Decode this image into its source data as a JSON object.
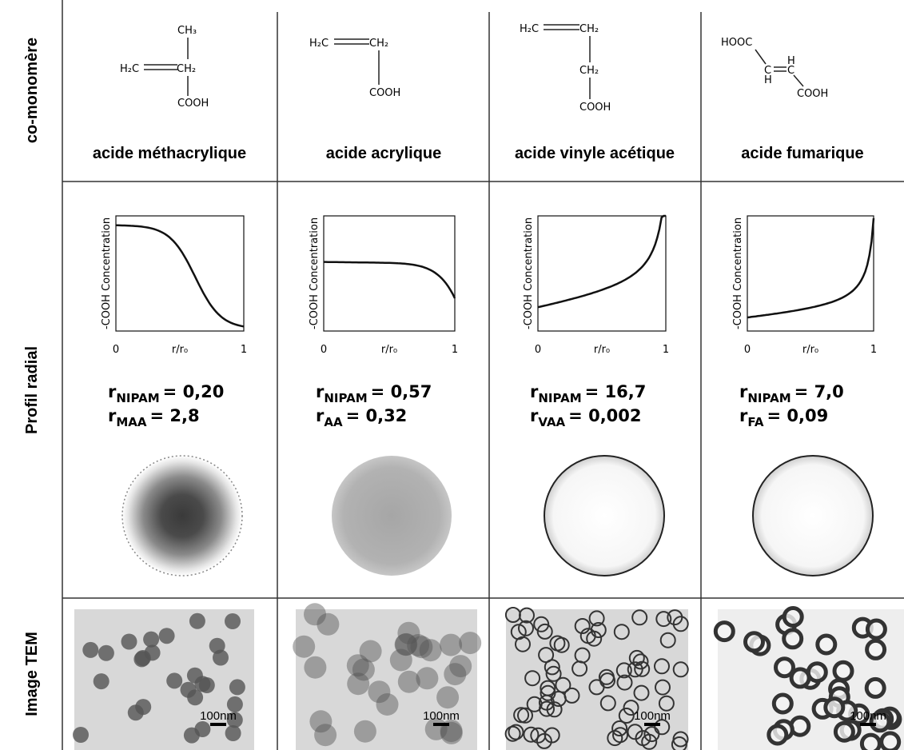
{
  "row_labels": [
    "co-monomère",
    "Profil radial",
    "Image TEM"
  ],
  "columns": [
    {
      "structure": [
        "CH₃",
        "H₂C",
        "CH₂",
        "COOH"
      ],
      "name": "acide méthacrylique",
      "plot": {
        "y_label": "-COOH Concentration",
        "x_label": "r/r₀",
        "x_ticks": [
          "0",
          "1"
        ]
      },
      "ratios": [
        {
          "symbol": "r",
          "subscript": "NIPAM",
          "value": "= 0,20"
        },
        {
          "symbol": "r",
          "subscript": "MAA",
          "value": "= 2,8"
        }
      ],
      "tem_scale": "100nm"
    },
    {
      "structure": [
        "H₂C",
        "CH₂",
        "COOH"
      ],
      "name": "acide acrylique",
      "plot": {
        "y_label": "-COOH Concentration",
        "x_label": "r/r₀",
        "x_ticks": [
          "0",
          "1"
        ]
      },
      "ratios": [
        {
          "symbol": "r",
          "subscript": "NIPAM",
          "value": "= 0,57"
        },
        {
          "symbol": "r",
          "subscript": "AA",
          "value": "= 0,32"
        }
      ],
      "tem_scale": "100nm"
    },
    {
      "structure": [
        "H₂C",
        "CH₂",
        "CH₂",
        "COOH"
      ],
      "name": "acide vinyle acétique",
      "plot": {
        "y_label": "-COOH Concentration",
        "x_label": "r/r₀",
        "x_ticks": [
          "0",
          "1"
        ]
      },
      "ratios": [
        {
          "symbol": "r",
          "subscript": "NIPAM",
          "value": "= 16,7"
        },
        {
          "symbol": "r",
          "subscript": "VAA",
          "value": "= 0,002"
        }
      ],
      "tem_scale": "100nm"
    },
    {
      "structure": [
        "HOOC",
        "C",
        "H",
        "C",
        "H",
        "COOH"
      ],
      "name": "acide fumarique",
      "plot": {
        "y_label": "-COOH Concentration",
        "x_label": "r/r₀",
        "x_ticks": [
          "0",
          "1"
        ]
      },
      "ratios": [
        {
          "symbol": "r",
          "subscript": "NIPAM",
          "value": "= 7,0"
        },
        {
          "symbol": "r",
          "subscript": "FA",
          "value": "= 0,09"
        }
      ],
      "tem_scale": "100nm"
    }
  ]
}
